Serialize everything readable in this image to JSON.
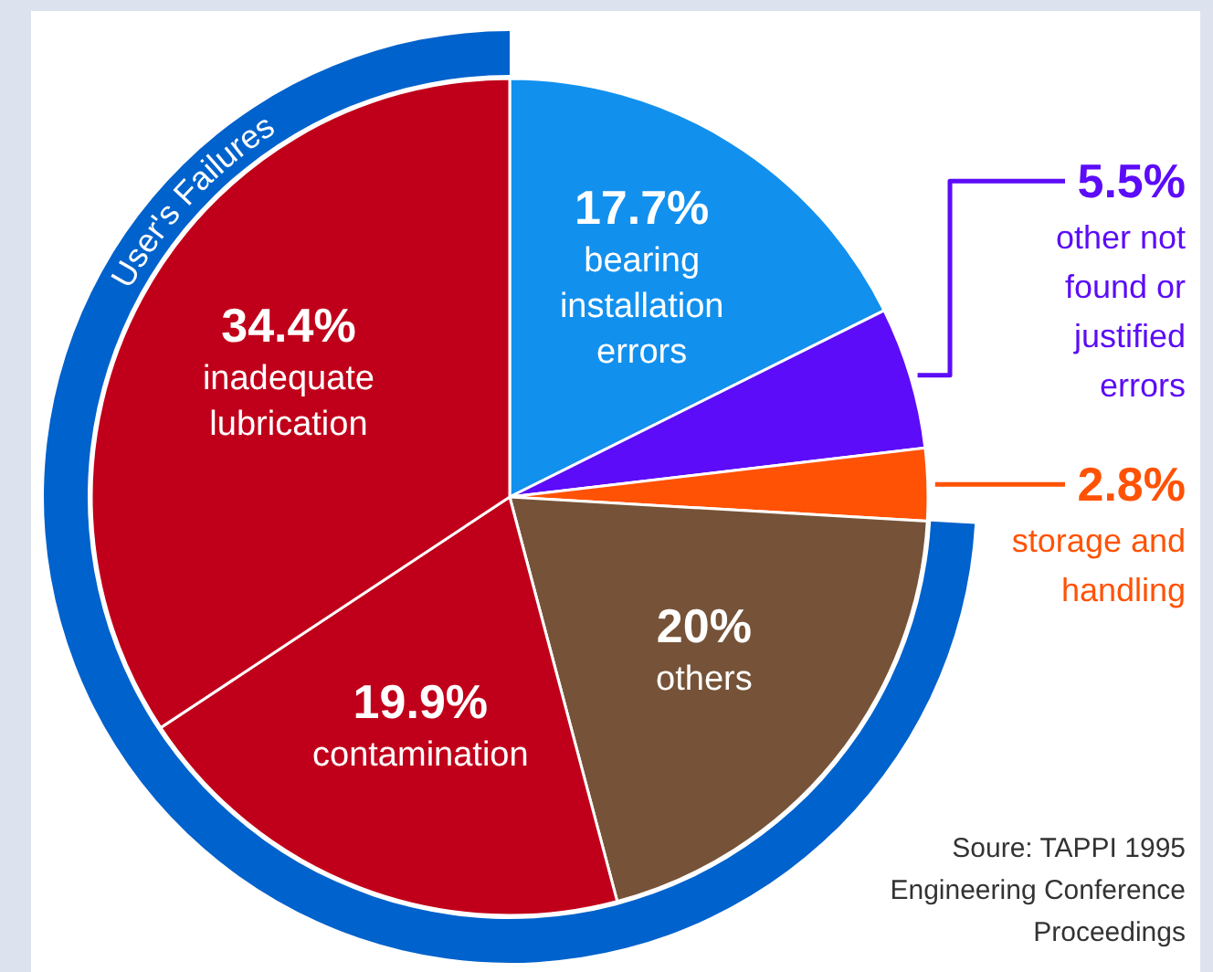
{
  "chart_data": {
    "type": "pie",
    "categories": [
      "bearing installation errors",
      "other not found or justified errors",
      "storage and handling",
      "others",
      "contamination",
      "inadequate lubrication"
    ],
    "values": [
      17.7,
      5.5,
      2.8,
      20,
      19.9,
      34.4
    ],
    "value_labels": [
      "17.7%",
      "5.5%",
      "2.8%",
      "20%",
      "19.9%",
      "34.4%"
    ],
    "colors": [
      "#1290ee",
      "#5c0cf8",
      "#ff5205",
      "#765338",
      "#c0001a",
      "#c0001a"
    ],
    "annotations": [
      "User's Failures",
      "Soure: TAPPI 1995 Engineering Conference Proceedings"
    ]
  }
}
